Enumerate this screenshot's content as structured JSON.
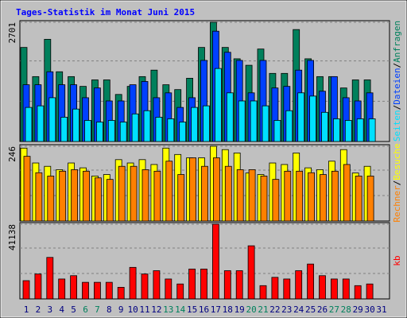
{
  "chart_data": [
    {
      "type": "bar",
      "title": "Tages-Statistik im Monat Juni 2015",
      "legend_separator": "/",
      "ylim": [
        0,
        2701
      ],
      "yticks": [
        2701
      ],
      "series": [
        {
          "name": "Anfragen",
          "color": "#00805c",
          "values": [
            2131,
            1470,
            2315,
            1580,
            1470,
            1249,
            1396,
            1396,
            1066,
            1249,
            1470,
            1617,
            1286,
            1176,
            1433,
            2131,
            2701,
            2131,
            1874,
            1727,
            2095,
            1543,
            1543,
            2536,
            1874,
            1470,
            1470,
            1213,
            1396,
            1396,
            null
          ]
        },
        {
          "name": "Dateien",
          "color": "#0040ff",
          "values": [
            1286,
            1286,
            1580,
            1286,
            1286,
            992,
            1213,
            919,
            919,
            1286,
            1360,
            992,
            1102,
            772,
            992,
            1837,
            2499,
            2021,
            1837,
            1102,
            1837,
            1213,
            1249,
            1617,
            1837,
            1139,
            1470,
            992,
            919,
            1102,
            null
          ]
        },
        {
          "name": "Seiten",
          "color": "#00e0ff",
          "values": [
            772,
            808,
            992,
            551,
            735,
            478,
            441,
            478,
            441,
            625,
            698,
            551,
            514,
            441,
            772,
            808,
            1654,
            1102,
            919,
            919,
            808,
            478,
            698,
            1102,
            1029,
            661,
            514,
            478,
            514,
            514,
            null
          ]
        }
      ]
    },
    {
      "type": "bar",
      "legend_separator": "/",
      "ylim": [
        0,
        246
      ],
      "yticks": [
        246
      ],
      "series": [
        {
          "name": "Besuche",
          "color": "#ffff00",
          "values": [
            240,
            191,
            180,
            169,
            191,
            175,
            148,
            153,
            202,
            191,
            202,
            186,
            240,
            219,
            208,
            208,
            246,
            235,
            224,
            158,
            153,
            191,
            186,
            224,
            175,
            169,
            197,
            235,
            158,
            180,
            null
          ]
        },
        {
          "name": "Rechner",
          "color": "#ff8000",
          "values": [
            213,
            159,
            148,
            164,
            169,
            164,
            142,
            137,
            180,
            180,
            169,
            164,
            197,
            153,
            208,
            180,
            208,
            180,
            169,
            169,
            148,
            137,
            164,
            164,
            159,
            153,
            164,
            186,
            148,
            148,
            null
          ]
        }
      ]
    },
    {
      "type": "bar",
      "ylim": [
        0,
        41138
      ],
      "yticks": [
        41138
      ],
      "categories": [
        "1",
        "2",
        "3",
        "4",
        "5",
        "6",
        "7",
        "8",
        "9",
        "10",
        "11",
        "12",
        "13",
        "14",
        "15",
        "16",
        "17",
        "18",
        "19",
        "20",
        "21",
        "22",
        "23",
        "24",
        "25",
        "26",
        "27",
        "28",
        "29",
        "30",
        "31"
      ],
      "category_colors": [
        "#000080",
        "#000080",
        "#000080",
        "#000080",
        "#000080",
        "#00805c",
        "#00805c",
        "#000080",
        "#000080",
        "#000080",
        "#000080",
        "#000080",
        "#00805c",
        "#00805c",
        "#000080",
        "#000080",
        "#000080",
        "#000080",
        "#000080",
        "#00805c",
        "#00805c",
        "#000080",
        "#000080",
        "#000080",
        "#000080",
        "#000080",
        "#00805c",
        "#00805c",
        "#000080",
        "#000080",
        "#000080"
      ],
      "series": [
        {
          "name": "kb",
          "color": "#ff0000",
          "values": [
            10054,
            13710,
            22850,
            10968,
            12796,
            9140,
            9140,
            9140,
            6398,
            17366,
            13710,
            15538,
            10968,
            8226,
            16452,
            16452,
            41138,
            15538,
            15538,
            29248,
            7312,
            11882,
            10968,
            15538,
            19194,
            12796,
            10968,
            10968,
            7312,
            8226,
            null
          ]
        }
      ]
    }
  ]
}
